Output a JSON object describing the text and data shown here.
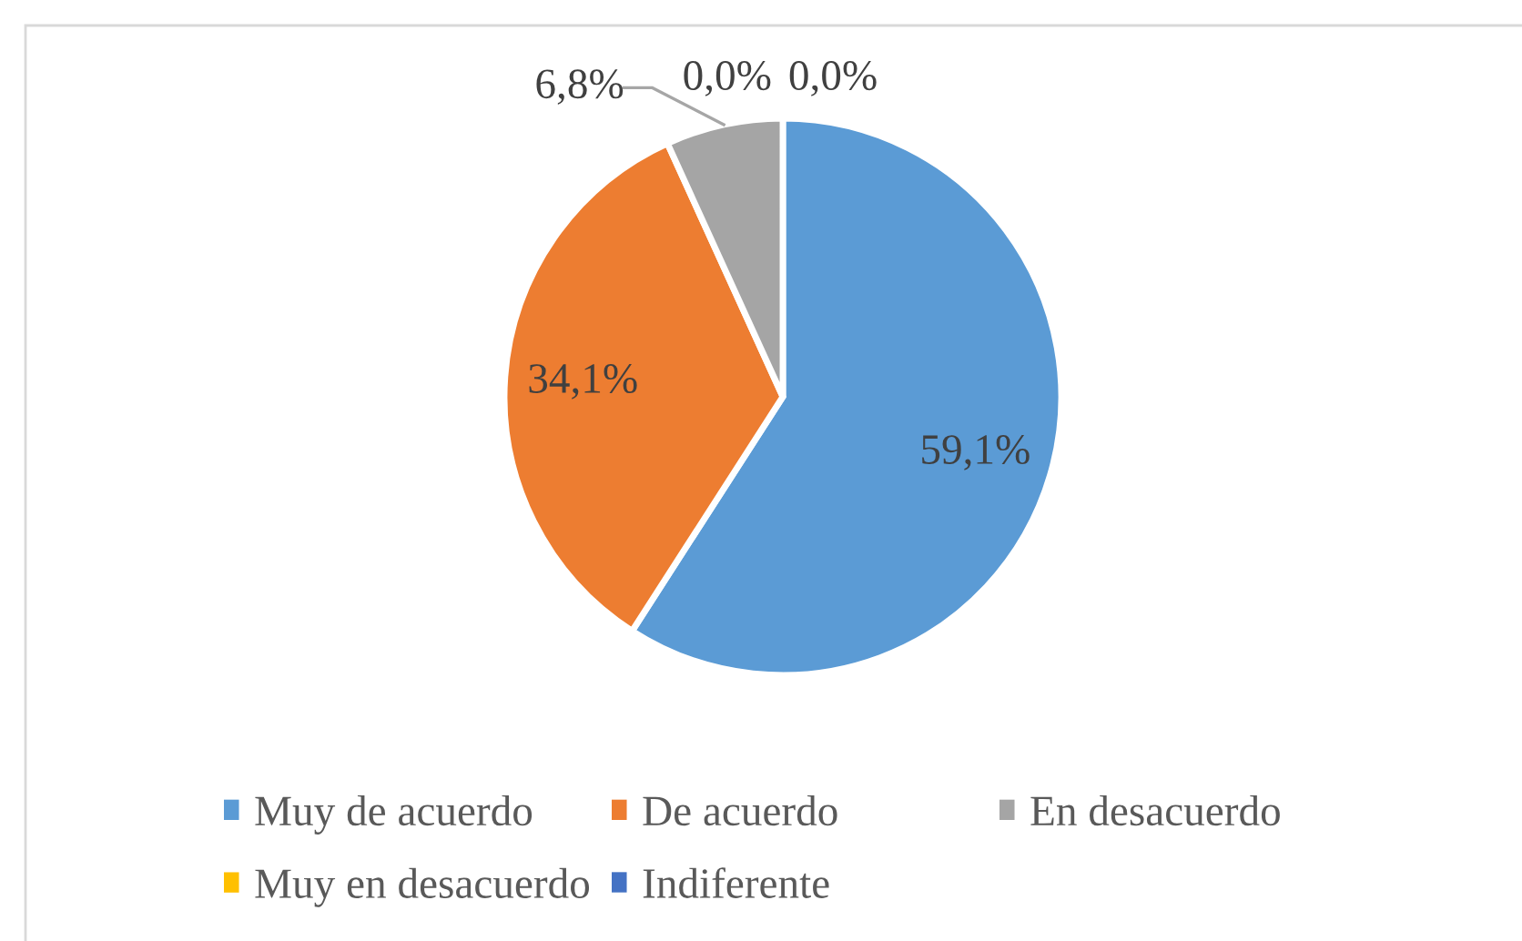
{
  "chart_data": {
    "type": "pie",
    "categories": [
      "Muy de acuerdo",
      "De acuerdo",
      "En desacuerdo",
      "Muy en desacuerdo",
      "Indiferente"
    ],
    "values": [
      59.1,
      34.1,
      6.8,
      0.0,
      0.0
    ],
    "colors": [
      "#5b9bd5",
      "#ed7d31",
      "#a5a5a5",
      "#ffc000",
      "#4472c4"
    ],
    "value_labels": [
      "59,1%",
      "34,1%",
      "6,8%",
      "0,0%",
      "0,0%"
    ],
    "legend": "bottom"
  }
}
